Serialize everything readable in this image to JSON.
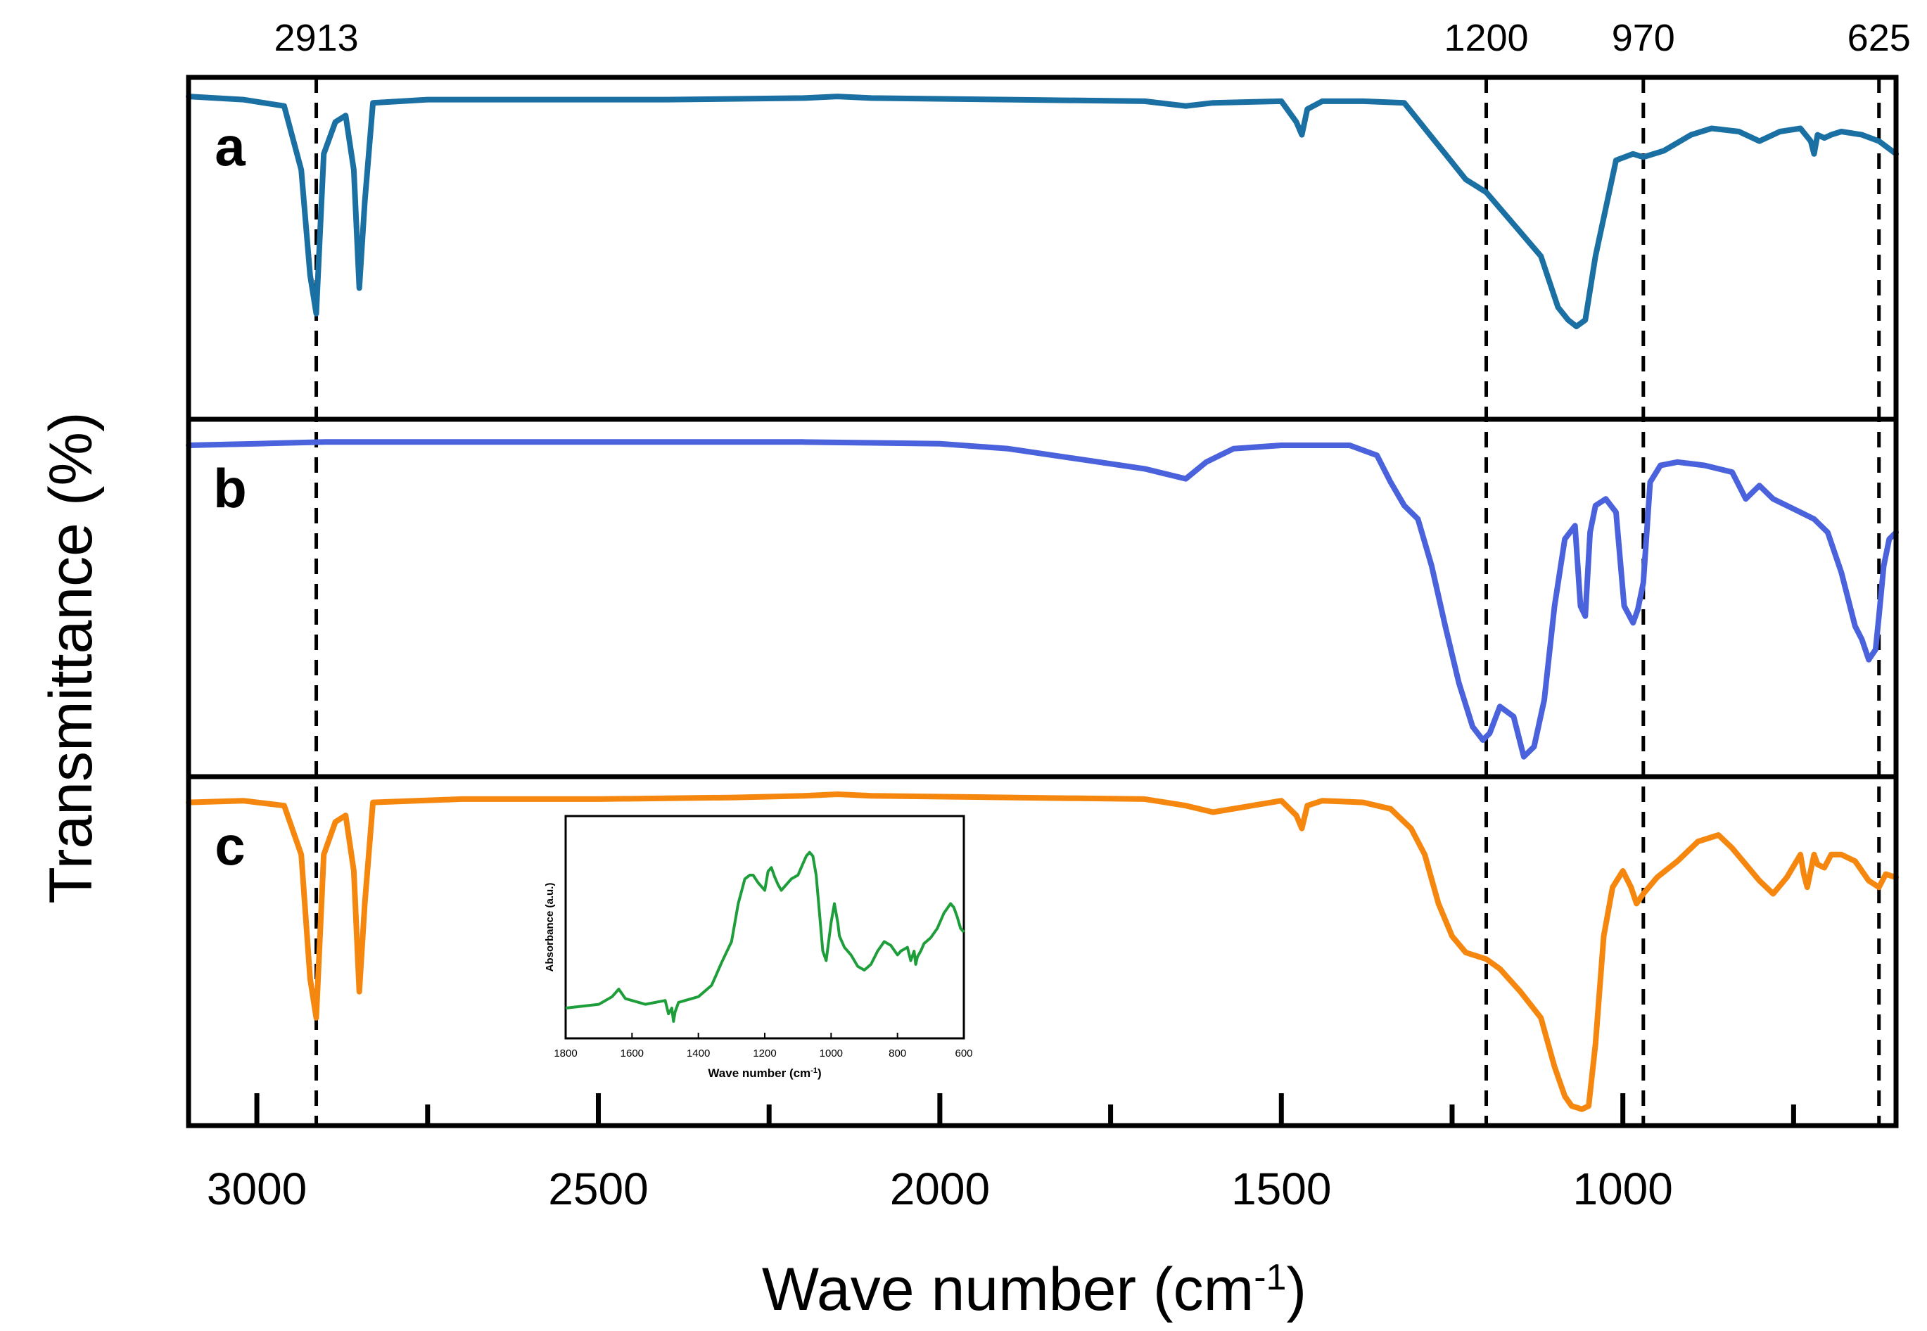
{
  "chart_data": {
    "type": "line",
    "title": "",
    "xlabel": "Wave number (cm",
    "xlabel_sup": "-1",
    "xlabel_close": ")",
    "ylabel": "Transmittance (%)",
    "xlim": [
      3100,
      600
    ],
    "x_ticks": [
      3000,
      2500,
      2000,
      1500,
      1000
    ],
    "marker_lines": [
      {
        "x": 2913,
        "label": "2913"
      },
      {
        "x": 1200,
        "label": "1200"
      },
      {
        "x": 970,
        "label": "970"
      },
      {
        "x": 625,
        "label": "625"
      }
    ],
    "panels": [
      {
        "label": "a",
        "color": "#1a6fa3",
        "ylim": [
          0,
          100
        ],
        "x": [
          3100,
          3020,
          2960,
          2935,
          2922,
          2913,
          2902,
          2885,
          2870,
          2858,
          2850,
          2842,
          2830,
          2750,
          2600,
          2400,
          2200,
          2150,
          2100,
          1900,
          1700,
          1640,
          1600,
          1500,
          1478,
          1470,
          1462,
          1440,
          1380,
          1320,
          1290,
          1260,
          1230,
          1200,
          1160,
          1120,
          1095,
          1080,
          1068,
          1055,
          1040,
          1010,
          985,
          970,
          940,
          900,
          870,
          830,
          800,
          770,
          740,
          725,
          720,
          715,
          705,
          695,
          680,
          650,
          625,
          600
        ],
        "y": [
          98,
          97,
          95,
          75,
          42,
          30,
          80,
          90,
          92,
          75,
          38,
          65,
          96,
          97,
          97,
          97,
          97.5,
          98,
          97.5,
          97,
          96.5,
          95,
          96,
          96.5,
          90,
          86,
          94,
          96.5,
          96.5,
          96,
          88,
          80,
          72,
          68,
          58,
          48,
          32,
          28,
          26,
          28,
          48,
          78,
          80,
          79,
          81,
          86,
          88,
          87,
          84,
          87,
          88,
          84,
          80,
          86,
          85,
          86,
          87,
          86,
          84,
          80
        ]
      },
      {
        "label": "b",
        "color": "#4a62dc",
        "ylim": [
          0,
          100
        ],
        "x": [
          3100,
          3000,
          2900,
          2800,
          2600,
          2400,
          2200,
          2000,
          1900,
          1800,
          1700,
          1660,
          1640,
          1610,
          1570,
          1500,
          1400,
          1360,
          1340,
          1320,
          1300,
          1280,
          1260,
          1240,
          1220,
          1205,
          1195,
          1180,
          1160,
          1145,
          1130,
          1115,
          1100,
          1085,
          1070,
          1062,
          1055,
          1048,
          1040,
          1025,
          1010,
          998,
          985,
          978,
          970,
          960,
          945,
          920,
          880,
          840,
          820,
          800,
          780,
          740,
          720,
          700,
          680,
          660,
          650,
          640,
          630,
          625,
          618,
          610,
          600
        ],
        "y": [
          96,
          96.5,
          97,
          97,
          97,
          97,
          97,
          96.5,
          95,
          92,
          89,
          87,
          86,
          91,
          95,
          96,
          96,
          93,
          85,
          78,
          74,
          60,
          42,
          25,
          12,
          8,
          10,
          18,
          15,
          3,
          6,
          20,
          48,
          68,
          72,
          48,
          45,
          70,
          78,
          80,
          76,
          48,
          43,
          47,
          55,
          85,
          90,
          91,
          90,
          88,
          80,
          84,
          80,
          76,
          74,
          70,
          58,
          42,
          38,
          32,
          35,
          45,
          60,
          68,
          70
        ]
      },
      {
        "label": "c",
        "color": "#f5870f",
        "ylim": [
          0,
          100
        ],
        "x": [
          3100,
          3020,
          2960,
          2935,
          2922,
          2913,
          2902,
          2885,
          2870,
          2858,
          2850,
          2842,
          2830,
          2700,
          2500,
          2300,
          2200,
          2150,
          2100,
          1900,
          1700,
          1640,
          1600,
          1500,
          1478,
          1470,
          1462,
          1440,
          1380,
          1340,
          1310,
          1290,
          1270,
          1250,
          1230,
          1200,
          1180,
          1150,
          1120,
          1100,
          1085,
          1075,
          1060,
          1050,
          1040,
          1028,
          1015,
          1000,
          988,
          980,
          970,
          950,
          920,
          890,
          860,
          840,
          800,
          780,
          760,
          740,
          735,
          730,
          720,
          715,
          705,
          695,
          680,
          660,
          640,
          625,
          615,
          600
        ],
        "y": [
          96,
          96.5,
          95,
          80,
          42,
          30,
          80,
          90,
          92,
          75,
          38,
          65,
          96,
          97,
          97,
          97.5,
          98,
          98.5,
          98,
          97.5,
          97,
          95,
          93,
          96.5,
          92,
          88,
          95,
          96.5,
          96,
          94,
          88,
          80,
          65,
          55,
          50,
          48,
          45,
          38,
          30,
          15,
          6,
          3,
          2,
          3,
          22,
          55,
          70,
          75,
          70,
          65,
          68,
          73,
          78,
          84,
          86,
          82,
          72,
          68,
          73,
          80,
          74,
          70,
          80,
          77,
          76,
          80,
          80,
          78,
          72,
          70,
          74,
          73
        ]
      }
    ],
    "inset": {
      "type": "line",
      "xlabel": "Wave number (cm",
      "xlabel_sup": "-1",
      "xlabel_close": ")",
      "ylabel": "Absorbance (a.u.)",
      "xlim": [
        1800,
        600
      ],
      "ylim": [
        0,
        100
      ],
      "x_ticks": [
        1800,
        1600,
        1400,
        1200,
        1000,
        800,
        600
      ],
      "color": "#1e9e3a",
      "x": [
        1800,
        1700,
        1660,
        1640,
        1620,
        1560,
        1500,
        1490,
        1480,
        1475,
        1470,
        1460,
        1440,
        1400,
        1360,
        1330,
        1300,
        1280,
        1260,
        1245,
        1235,
        1220,
        1200,
        1190,
        1180,
        1170,
        1160,
        1150,
        1140,
        1130,
        1120,
        1100,
        1085,
        1075,
        1065,
        1055,
        1045,
        1035,
        1025,
        1015,
        1000,
        990,
        985,
        980,
        975,
        960,
        940,
        920,
        900,
        880,
        860,
        840,
        820,
        800,
        790,
        770,
        760,
        750,
        745,
        740,
        730,
        720,
        700,
        680,
        660,
        640,
        630,
        620,
        610,
        600
      ],
      "y": [
        10,
        12,
        16,
        20,
        15,
        12,
        14,
        7,
        10,
        3,
        8,
        13,
        14,
        16,
        22,
        34,
        45,
        65,
        78,
        80,
        80,
        76,
        72,
        82,
        84,
        79,
        75,
        72,
        74,
        76,
        78,
        80,
        86,
        90,
        92,
        90,
        80,
        60,
        40,
        35,
        55,
        65,
        60,
        55,
        48,
        42,
        38,
        32,
        30,
        33,
        40,
        45,
        43,
        38,
        40,
        42,
        35,
        40,
        33,
        37,
        40,
        44,
        47,
        52,
        60,
        65,
        63,
        58,
        52,
        50
      ]
    }
  }
}
